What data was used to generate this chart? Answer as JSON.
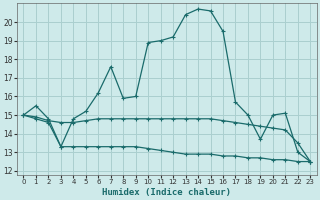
{
  "xlabel": "Humidex (Indice chaleur)",
  "xlim": [
    -0.5,
    23.5
  ],
  "ylim": [
    11.8,
    21.0
  ],
  "yticks": [
    12,
    13,
    14,
    15,
    16,
    17,
    18,
    19,
    20
  ],
  "xticks": [
    0,
    1,
    2,
    3,
    4,
    5,
    6,
    7,
    8,
    9,
    10,
    11,
    12,
    13,
    14,
    15,
    16,
    17,
    18,
    19,
    20,
    21,
    22,
    23
  ],
  "bg_color": "#ceeaea",
  "grid_color": "#aacfcf",
  "line_color": "#1a6b6b",
  "series1": [
    [
      0,
      15.0
    ],
    [
      1,
      15.5
    ],
    [
      2,
      14.8
    ],
    [
      3,
      13.3
    ],
    [
      4,
      14.8
    ],
    [
      5,
      15.2
    ],
    [
      6,
      16.2
    ],
    [
      7,
      17.6
    ],
    [
      8,
      15.9
    ],
    [
      9,
      16.0
    ],
    [
      10,
      18.9
    ],
    [
      11,
      19.0
    ],
    [
      12,
      19.2
    ],
    [
      13,
      20.4
    ],
    [
      14,
      20.7
    ],
    [
      15,
      20.6
    ],
    [
      16,
      19.5
    ],
    [
      17,
      15.7
    ],
    [
      18,
      15.0
    ],
    [
      19,
      13.7
    ],
    [
      20,
      15.0
    ],
    [
      21,
      15.1
    ],
    [
      22,
      13.0
    ],
    [
      23,
      12.5
    ]
  ],
  "series2": [
    [
      0,
      15.0
    ],
    [
      1,
      14.9
    ],
    [
      2,
      14.7
    ],
    [
      3,
      14.6
    ],
    [
      4,
      14.6
    ],
    [
      5,
      14.7
    ],
    [
      6,
      14.8
    ],
    [
      7,
      14.8
    ],
    [
      8,
      14.8
    ],
    [
      9,
      14.8
    ],
    [
      10,
      14.8
    ],
    [
      11,
      14.8
    ],
    [
      12,
      14.8
    ],
    [
      13,
      14.8
    ],
    [
      14,
      14.8
    ],
    [
      15,
      14.8
    ],
    [
      16,
      14.7
    ],
    [
      17,
      14.6
    ],
    [
      18,
      14.5
    ],
    [
      19,
      14.4
    ],
    [
      20,
      14.3
    ],
    [
      21,
      14.2
    ],
    [
      22,
      13.5
    ],
    [
      23,
      12.5
    ]
  ],
  "series3": [
    [
      0,
      15.0
    ],
    [
      1,
      14.8
    ],
    [
      2,
      14.6
    ],
    [
      3,
      13.3
    ],
    [
      4,
      13.3
    ],
    [
      5,
      13.3
    ],
    [
      6,
      13.3
    ],
    [
      7,
      13.3
    ],
    [
      8,
      13.3
    ],
    [
      9,
      13.3
    ],
    [
      10,
      13.2
    ],
    [
      11,
      13.1
    ],
    [
      12,
      13.0
    ],
    [
      13,
      12.9
    ],
    [
      14,
      12.9
    ],
    [
      15,
      12.9
    ],
    [
      16,
      12.8
    ],
    [
      17,
      12.8
    ],
    [
      18,
      12.7
    ],
    [
      19,
      12.7
    ],
    [
      20,
      12.6
    ],
    [
      21,
      12.6
    ],
    [
      22,
      12.5
    ],
    [
      23,
      12.5
    ]
  ]
}
